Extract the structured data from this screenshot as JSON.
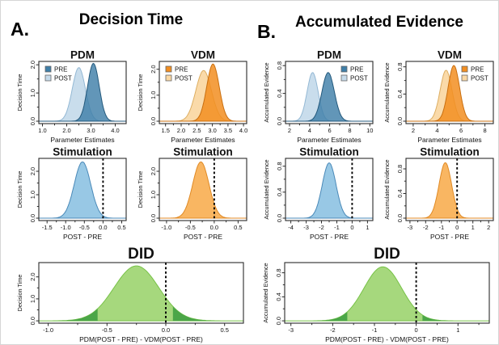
{
  "figure": {
    "panels": [
      {
        "label": "A.",
        "title": "Decision Time"
      },
      {
        "label": "B.",
        "title": "Accumulated Evidence"
      }
    ]
  },
  "colors": {
    "pre_blue": "#3F7FA8",
    "pre_blue_stroke": "#24597C",
    "post_blue": "#C6DBEB",
    "post_blue_stroke": "#93B8D4",
    "mid_blue": "#8FC3E3",
    "mid_blue_stroke": "#4A89B8",
    "pre_orange": "#F28E21",
    "pre_orange_stroke": "#C96F10",
    "post_orange": "#FAD8A4",
    "post_orange_stroke": "#DDAE62",
    "mid_orange": "#F8B055",
    "mid_orange_stroke": "#E08A25",
    "green": "#A6D87D",
    "green_stroke": "#77C247",
    "green_dark": "#4BA648",
    "axis": "#2b2b2b",
    "vline": "#000000"
  },
  "chart_data": [
    {
      "id": "a-pdm",
      "panel": "A",
      "type": "area",
      "title": "PDM",
      "xlabel": "Parameter Estimates",
      "ylabel": "Decision Time",
      "xlim": [
        0.85,
        4.45
      ],
      "ylim": [
        0,
        2.12
      ],
      "xticks": [
        1,
        2,
        3,
        4
      ],
      "xtick_labels": [
        "1.0",
        "2.0",
        "3.0",
        "4.0"
      ],
      "yticks": [
        0,
        1,
        2
      ],
      "ytick_labels": [
        "0.0",
        "1.0",
        "2.0"
      ],
      "legend": {
        "side": "left",
        "items": [
          {
            "label": "PRE",
            "color_key": "pre_blue"
          },
          {
            "label": "POST",
            "color_key": "post_blue"
          }
        ]
      },
      "series": [
        {
          "name": "POST",
          "mean": 2.5,
          "sd": 0.27,
          "peak": 1.9,
          "fill": "post_blue",
          "stroke": "post_blue_stroke",
          "opacity": 0.95
        },
        {
          "name": "PRE",
          "mean": 3.1,
          "sd": 0.24,
          "peak": 2.05,
          "fill": "pre_blue",
          "stroke": "pre_blue_stroke",
          "opacity": 0.82
        }
      ]
    },
    {
      "id": "a-vdm",
      "panel": "A",
      "type": "area",
      "title": "VDM",
      "xlabel": "Parameter Estimates",
      "ylabel": "Decision Time",
      "xlim": [
        1.3,
        4.1
      ],
      "ylim": [
        0,
        2.3
      ],
      "xticks": [
        1.5,
        2,
        2.5,
        3,
        3.5,
        4
      ],
      "xtick_labels": [
        "1.5",
        "2.0",
        "2.5",
        "3.0",
        "3.5",
        "4.0"
      ],
      "yticks": [
        0,
        1,
        2
      ],
      "ytick_labels": [
        "0.0",
        "1.0",
        "2.0"
      ],
      "legend": {
        "side": "left",
        "items": [
          {
            "label": "PRE",
            "color_key": "pre_orange"
          },
          {
            "label": "POST",
            "color_key": "post_orange"
          }
        ]
      },
      "series": [
        {
          "name": "POST",
          "mean": 2.72,
          "sd": 0.25,
          "peak": 1.95,
          "fill": "post_orange",
          "stroke": "post_orange_stroke",
          "opacity": 0.95
        },
        {
          "name": "PRE",
          "mean": 3.02,
          "sd": 0.2,
          "peak": 2.2,
          "fill": "pre_orange",
          "stroke": "pre_orange_stroke",
          "opacity": 0.85
        }
      ]
    },
    {
      "id": "a-stim-pdm",
      "panel": "A",
      "type": "area",
      "title": "Stimulation",
      "xlabel": "POST - PRE",
      "ylabel": "Decision Time",
      "xlim": [
        -1.72,
        0.62
      ],
      "ylim": [
        0,
        2.55
      ],
      "xticks": [
        -1.5,
        -1,
        -0.5,
        0,
        0.5
      ],
      "xtick_labels": [
        "-1.5",
        "-1.0",
        "-0.5",
        "0.0",
        "0.5"
      ],
      "yticks": [
        0,
        1,
        2
      ],
      "ytick_labels": [
        "0.0",
        "1.0",
        "2.0"
      ],
      "vline": 0,
      "series": [
        {
          "name": "POST - PRE",
          "mean": -0.55,
          "sd": 0.22,
          "peak": 2.4,
          "fill": "mid_blue",
          "stroke": "mid_blue_stroke",
          "opacity": 0.92
        }
      ]
    },
    {
      "id": "a-stim-vdm",
      "panel": "A",
      "type": "area",
      "title": "Stimulation",
      "xlabel": "POST - PRE",
      "ylabel": "Decision Time",
      "xlim": [
        -1.15,
        0.68
      ],
      "ylim": [
        0,
        2.55
      ],
      "xticks": [
        -1,
        -0.5,
        0,
        0.5
      ],
      "xtick_labels": [
        "-1.0",
        "-0.5",
        "0.0",
        "0.5"
      ],
      "yticks": [
        0,
        1,
        2
      ],
      "ytick_labels": [
        "0.0",
        "1.0",
        "2.0"
      ],
      "vline": 0,
      "series": [
        {
          "name": "POST - PRE",
          "mean": -0.28,
          "sd": 0.17,
          "peak": 2.4,
          "fill": "mid_orange",
          "stroke": "mid_orange_stroke",
          "opacity": 0.92
        }
      ]
    },
    {
      "id": "a-did",
      "panel": "A",
      "type": "area",
      "title": "DID",
      "title_style": "large",
      "xlabel": "PDM(POST - PRE) - VDM(POST - PRE)",
      "ylabel": "Decision Time",
      "xlim": [
        -1.08,
        0.66
      ],
      "ylim": [
        0,
        2.65
      ],
      "xticks": [
        -1,
        -0.5,
        0,
        0.5
      ],
      "xtick_labels": [
        "-1.0",
        "-0.5",
        "0.0",
        "0.5"
      ],
      "yticks": [
        0,
        1,
        2
      ],
      "ytick_labels": [
        "0.0",
        "1.0",
        "2.0"
      ],
      "vline": 0,
      "tails": {
        "low": -0.58,
        "high": 0.06,
        "fill": "green_dark"
      },
      "series": [
        {
          "name": "DID",
          "mean": -0.25,
          "sd": 0.19,
          "peak": 2.5,
          "fill": "green",
          "stroke": "green_stroke",
          "opacity": 1
        }
      ]
    },
    {
      "id": "b-pdm",
      "panel": "B",
      "type": "area",
      "title": "PDM",
      "xlabel": "Parameter Estimates",
      "ylabel": "Accumulated Evidence",
      "xlim": [
        1.6,
        10.3
      ],
      "ylim": [
        0,
        0.86
      ],
      "xticks": [
        2,
        4,
        6,
        8,
        10
      ],
      "xtick_labels": [
        "2",
        "4",
        "6",
        "8",
        "10"
      ],
      "yticks": [
        0,
        0.4,
        0.8
      ],
      "ytick_labels": [
        "0.0",
        "0.4",
        "0.8"
      ],
      "legend": {
        "side": "right",
        "items": [
          {
            "label": "PRE",
            "color_key": "pre_blue"
          },
          {
            "label": "POST",
            "color_key": "post_blue"
          }
        ]
      },
      "series": [
        {
          "name": "POST",
          "mean": 4.3,
          "sd": 0.55,
          "peak": 0.7,
          "fill": "post_blue",
          "stroke": "post_blue_stroke",
          "opacity": 0.95
        },
        {
          "name": "PRE",
          "mean": 5.85,
          "sd": 0.62,
          "peak": 0.7,
          "fill": "pre_blue",
          "stroke": "pre_blue_stroke",
          "opacity": 0.82
        }
      ]
    },
    {
      "id": "b-vdm",
      "panel": "B",
      "type": "area",
      "title": "VDM",
      "xlabel": "Parameter Estimates",
      "ylabel": "Accumulated Evidence",
      "xlim": [
        1.4,
        8.7
      ],
      "ylim": [
        0,
        0.88
      ],
      "xticks": [
        2,
        4,
        6,
        8
      ],
      "xtick_labels": [
        "2",
        "4",
        "6",
        "8"
      ],
      "yticks": [
        0,
        0.4,
        0.8
      ],
      "ytick_labels": [
        "0.0",
        "0.4",
        "0.8"
      ],
      "legend": {
        "side": "right",
        "items": [
          {
            "label": "PRE",
            "color_key": "pre_orange"
          },
          {
            "label": "POST",
            "color_key": "post_orange"
          }
        ]
      },
      "series": [
        {
          "name": "POST",
          "mean": 4.75,
          "sd": 0.5,
          "peak": 0.75,
          "fill": "post_orange",
          "stroke": "post_orange_stroke",
          "opacity": 0.95
        },
        {
          "name": "PRE",
          "mean": 5.4,
          "sd": 0.48,
          "peak": 0.82,
          "fill": "pre_orange",
          "stroke": "pre_orange_stroke",
          "opacity": 0.85
        }
      ]
    },
    {
      "id": "b-stim-pdm",
      "panel": "B",
      "type": "area",
      "title": "Stimulation",
      "xlabel": "POST - PRE",
      "ylabel": "Accumulated Evidence",
      "xlim": [
        -4.35,
        1.35
      ],
      "ylim": [
        0,
        0.92
      ],
      "xticks": [
        -4,
        -3,
        -2,
        -1,
        0,
        1
      ],
      "xtick_labels": [
        "-4",
        "-3",
        "-2",
        "-1",
        "0",
        "1"
      ],
      "yticks": [
        0,
        0.4,
        0.8
      ],
      "ytick_labels": [
        "0.0",
        "0.4",
        "0.8"
      ],
      "vline": 0,
      "series": [
        {
          "name": "POST - PRE",
          "mean": -1.5,
          "sd": 0.45,
          "peak": 0.85,
          "fill": "mid_blue",
          "stroke": "mid_blue_stroke",
          "opacity": 0.92
        }
      ]
    },
    {
      "id": "b-stim-vdm",
      "panel": "B",
      "type": "area",
      "title": "Stimulation",
      "xlabel": "POST - PRE",
      "ylabel": "Accumulated Evidence",
      "xlim": [
        -3.25,
        2.3
      ],
      "ylim": [
        0,
        0.97
      ],
      "xticks": [
        -3,
        -2,
        -1,
        0,
        1,
        2
      ],
      "xtick_labels": [
        "-3",
        "-2",
        "-1",
        "0",
        "1",
        "2"
      ],
      "yticks": [
        0,
        0.4,
        0.8
      ],
      "ytick_labels": [
        "0.0",
        "0.4",
        "0.8"
      ],
      "vline": 0,
      "series": [
        {
          "name": "POST - PRE",
          "mean": -0.75,
          "sd": 0.4,
          "peak": 0.9,
          "fill": "mid_orange",
          "stroke": "mid_orange_stroke",
          "opacity": 0.92
        }
      ]
    },
    {
      "id": "b-did",
      "panel": "B",
      "type": "area",
      "title": "DID",
      "title_style": "large",
      "xlabel": "PDM(POST - PRE) - VDM(POST - PRE)",
      "ylabel": "Accumulated Evidence",
      "xlim": [
        -3.15,
        1.75
      ],
      "ylim": [
        0,
        0.97
      ],
      "xticks": [
        -3,
        -2,
        -1,
        0,
        1
      ],
      "xtick_labels": [
        "-3",
        "-2",
        "-1",
        "0",
        "1"
      ],
      "yticks": [
        0,
        0.4,
        0.8
      ],
      "ytick_labels": [
        "0.0",
        "0.4",
        "0.8"
      ],
      "vline": 0,
      "tails": {
        "low": -1.65,
        "high": 0.15,
        "fill": "green_dark"
      },
      "series": [
        {
          "name": "DID",
          "mean": -0.8,
          "sd": 0.45,
          "peak": 0.9,
          "fill": "green",
          "stroke": "green_stroke",
          "opacity": 1
        }
      ]
    }
  ]
}
